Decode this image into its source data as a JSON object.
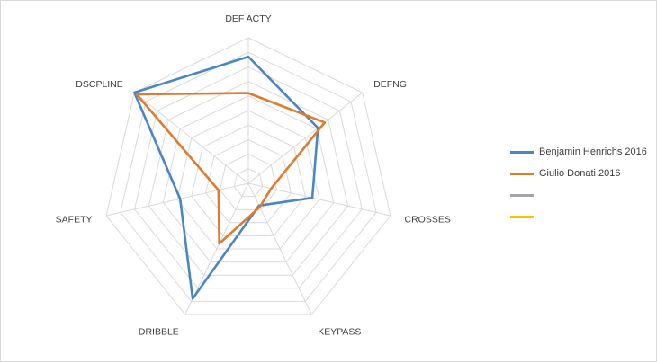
{
  "chart_data": {
    "type": "radar",
    "title": "",
    "axes": [
      "DEF ACTY",
      "DEFNG",
      "CROSSES",
      "KEYPASS",
      "DRIBBLE",
      "SAFETY",
      "DSCPLINE"
    ],
    "rmax": 10,
    "grid_levels": 10,
    "legend_position": "right",
    "series": [
      {
        "name": "Benjamin Henrichs 2016",
        "color": "#4a86c5",
        "values": [
          8.7,
          6.1,
          4.5,
          1.7,
          8.8,
          4.8,
          10.0
        ]
      },
      {
        "name": "Giulio Donati 2016",
        "color": "#e07b2e",
        "values": [
          6.2,
          6.7,
          1.6,
          1.8,
          4.6,
          2.1,
          9.8
        ]
      },
      {
        "name": "",
        "color": "#a5a5a5",
        "values": []
      },
      {
        "name": "",
        "color": "#ffc000",
        "values": []
      }
    ]
  }
}
